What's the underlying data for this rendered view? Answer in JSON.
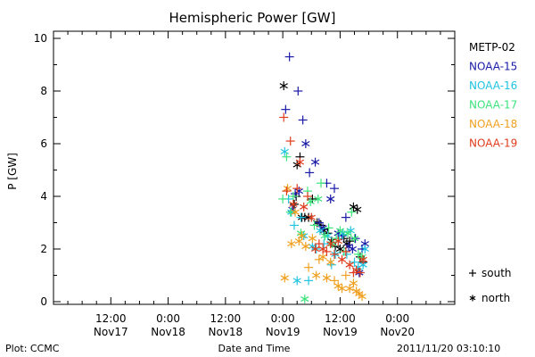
{
  "chart_data": {
    "type": "scatter",
    "title": "Hemispheric Power [GW]",
    "ylabel": "P [GW]",
    "xlabel": "Date and Time",
    "ylim": [
      0,
      10
    ],
    "yticks": [
      0,
      2,
      4,
      6,
      8,
      10
    ],
    "x_unit": "hours since 2011-11-16 12:00 UT",
    "xlim": [
      0,
      84
    ],
    "xticks": [
      {
        "x": 12,
        "time": "12:00",
        "date": "Nov17"
      },
      {
        "x": 24,
        "time": "0:00",
        "date": "Nov18"
      },
      {
        "x": 36,
        "time": "12:00",
        "date": "Nov18"
      },
      {
        "x": 48,
        "time": "0:00",
        "date": "Nov19"
      },
      {
        "x": 60,
        "time": "12:00",
        "date": "Nov19"
      },
      {
        "x": 72,
        "time": "0:00",
        "date": "Nov20"
      }
    ],
    "legend": {
      "placement": "right",
      "symbol_legend": [
        {
          "symbol": "+",
          "label": "south"
        },
        {
          "symbol": "*",
          "label": "north"
        }
      ]
    },
    "series": [
      {
        "name": "METP-02",
        "color": "#000000",
        "points": [
          {
            "x": 48.2,
            "y": 8.2,
            "m": "*"
          },
          {
            "x": 50.4,
            "y": 3.7,
            "m": "+"
          },
          {
            "x": 50.8,
            "y": 4.0,
            "m": "+"
          },
          {
            "x": 51.0,
            "y": 5.2,
            "m": "*"
          },
          {
            "x": 51.6,
            "y": 5.5,
            "m": "+"
          },
          {
            "x": 52.0,
            "y": 3.2,
            "m": "*"
          },
          {
            "x": 52.6,
            "y": 3.2,
            "m": "+"
          },
          {
            "x": 53.4,
            "y": 3.2,
            "m": "*"
          },
          {
            "x": 54.2,
            "y": 3.9,
            "m": "+"
          },
          {
            "x": 55.2,
            "y": 3.0,
            "m": "*"
          },
          {
            "x": 56.0,
            "y": 2.9,
            "m": "+"
          },
          {
            "x": 56.6,
            "y": 2.7,
            "m": "*"
          },
          {
            "x": 57.4,
            "y": 2.6,
            "m": "+"
          },
          {
            "x": 58.2,
            "y": 2.3,
            "m": "*"
          },
          {
            "x": 59.0,
            "y": 2.1,
            "m": "+"
          },
          {
            "x": 60.0,
            "y": 2.0,
            "m": "*"
          },
          {
            "x": 60.8,
            "y": 2.4,
            "m": "+"
          },
          {
            "x": 61.4,
            "y": 2.2,
            "m": "*"
          },
          {
            "x": 62.0,
            "y": 2.3,
            "m": "+"
          },
          {
            "x": 62.8,
            "y": 3.6,
            "m": "*"
          },
          {
            "x": 63.6,
            "y": 3.5,
            "m": "*"
          },
          {
            "x": 64.2,
            "y": 1.7,
            "m": "+"
          },
          {
            "x": 64.8,
            "y": 1.5,
            "m": "+"
          }
        ]
      },
      {
        "name": "NOAA-15",
        "color": "#1a1aa8",
        "points": [
          {
            "x": 48.6,
            "y": 7.3,
            "m": "+"
          },
          {
            "x": 49.4,
            "y": 9.3,
            "m": "+"
          },
          {
            "x": 50.0,
            "y": 3.5,
            "m": "*"
          },
          {
            "x": 50.6,
            "y": 4.1,
            "m": "+"
          },
          {
            "x": 51.2,
            "y": 8.0,
            "m": "+"
          },
          {
            "x": 51.4,
            "y": 4.2,
            "m": "*"
          },
          {
            "x": 52.2,
            "y": 6.9,
            "m": "+"
          },
          {
            "x": 52.8,
            "y": 6.0,
            "m": "*"
          },
          {
            "x": 53.6,
            "y": 4.9,
            "m": "+"
          },
          {
            "x": 54.8,
            "y": 5.3,
            "m": "*"
          },
          {
            "x": 55.6,
            "y": 3.0,
            "m": "+"
          },
          {
            "x": 56.4,
            "y": 2.8,
            "m": "*"
          },
          {
            "x": 57.2,
            "y": 4.5,
            "m": "+"
          },
          {
            "x": 58.0,
            "y": 3.9,
            "m": "*"
          },
          {
            "x": 58.8,
            "y": 4.3,
            "m": "+"
          },
          {
            "x": 59.6,
            "y": 2.6,
            "m": "*"
          },
          {
            "x": 60.4,
            "y": 2.5,
            "m": "+"
          },
          {
            "x": 61.2,
            "y": 3.2,
            "m": "+"
          },
          {
            "x": 61.8,
            "y": 2.1,
            "m": "*"
          },
          {
            "x": 62.6,
            "y": 2.0,
            "m": "*"
          },
          {
            "x": 63.2,
            "y": 2.4,
            "m": "+"
          },
          {
            "x": 64.0,
            "y": 1.1,
            "m": "*"
          },
          {
            "x": 64.6,
            "y": 2.0,
            "m": "+"
          },
          {
            "x": 65.2,
            "y": 2.2,
            "m": "*"
          }
        ]
      },
      {
        "name": "NOAA-16",
        "color": "#20c4e0",
        "points": [
          {
            "x": 48.4,
            "y": 5.7,
            "m": "*"
          },
          {
            "x": 49.2,
            "y": 3.9,
            "m": "+"
          },
          {
            "x": 49.8,
            "y": 3.4,
            "m": "*"
          },
          {
            "x": 50.4,
            "y": 2.9,
            "m": "+"
          },
          {
            "x": 51.0,
            "y": 0.8,
            "m": "*"
          },
          {
            "x": 51.8,
            "y": 3.2,
            "m": "+"
          },
          {
            "x": 52.4,
            "y": 2.5,
            "m": "*"
          },
          {
            "x": 53.4,
            "y": 0.8,
            "m": "+"
          },
          {
            "x": 54.2,
            "y": 2.1,
            "m": "*"
          },
          {
            "x": 55.0,
            "y": 2.0,
            "m": "+"
          },
          {
            "x": 55.8,
            "y": 2.7,
            "m": "*"
          },
          {
            "x": 56.6,
            "y": 2.2,
            "m": "+"
          },
          {
            "x": 57.4,
            "y": 2.5,
            "m": "*"
          },
          {
            "x": 58.2,
            "y": 1.4,
            "m": "+"
          },
          {
            "x": 59.0,
            "y": 1.8,
            "m": "*"
          },
          {
            "x": 59.8,
            "y": 2.4,
            "m": "+"
          },
          {
            "x": 60.6,
            "y": 2.6,
            "m": "*"
          },
          {
            "x": 61.4,
            "y": 1.8,
            "m": "+"
          },
          {
            "x": 62.2,
            "y": 2.7,
            "m": "*"
          },
          {
            "x": 63.0,
            "y": 1.5,
            "m": "+"
          },
          {
            "x": 63.8,
            "y": 1.3,
            "m": "*"
          },
          {
            "x": 64.8,
            "y": 1.4,
            "m": "*"
          },
          {
            "x": 65.2,
            "y": 2.0,
            "m": "*"
          }
        ]
      },
      {
        "name": "NOAA-17",
        "color": "#3ce47c",
        "points": [
          {
            "x": 48.0,
            "y": 3.9,
            "m": "+"
          },
          {
            "x": 48.8,
            "y": 5.5,
            "m": "+"
          },
          {
            "x": 49.6,
            "y": 3.4,
            "m": "+"
          },
          {
            "x": 50.2,
            "y": 4.0,
            "m": "+"
          },
          {
            "x": 51.8,
            "y": 2.6,
            "m": "*"
          },
          {
            "x": 52.6,
            "y": 0.1,
            "m": "*"
          },
          {
            "x": 53.2,
            "y": 4.2,
            "m": "+"
          },
          {
            "x": 53.8,
            "y": 3.8,
            "m": "*"
          },
          {
            "x": 54.6,
            "y": 2.9,
            "m": "+"
          },
          {
            "x": 55.4,
            "y": 3.9,
            "m": "*"
          },
          {
            "x": 56.0,
            "y": 4.5,
            "m": "+"
          },
          {
            "x": 56.8,
            "y": 2.5,
            "m": "*"
          },
          {
            "x": 57.6,
            "y": 2.8,
            "m": "+"
          },
          {
            "x": 58.4,
            "y": 2.2,
            "m": "*"
          },
          {
            "x": 59.2,
            "y": 2.4,
            "m": "+"
          },
          {
            "x": 60.0,
            "y": 2.7,
            "m": "*"
          },
          {
            "x": 60.8,
            "y": 1.9,
            "m": "+"
          },
          {
            "x": 61.6,
            "y": 2.6,
            "m": "*"
          },
          {
            "x": 62.4,
            "y": 3.4,
            "m": "+"
          },
          {
            "x": 63.0,
            "y": 2.4,
            "m": "*"
          },
          {
            "x": 63.8,
            "y": 1.8,
            "m": "+"
          },
          {
            "x": 64.6,
            "y": 1.7,
            "m": "*"
          }
        ]
      },
      {
        "name": "NOAA-18",
        "color": "#f0a020",
        "points": [
          {
            "x": 48.4,
            "y": 0.9,
            "m": "*"
          },
          {
            "x": 49.0,
            "y": 4.3,
            "m": "*"
          },
          {
            "x": 49.8,
            "y": 2.2,
            "m": "*"
          },
          {
            "x": 50.6,
            "y": 3.4,
            "m": "*"
          },
          {
            "x": 51.4,
            "y": 2.3,
            "m": "*"
          },
          {
            "x": 52.0,
            "y": 2.5,
            "m": "*"
          },
          {
            "x": 52.8,
            "y": 2.1,
            "m": "*"
          },
          {
            "x": 53.4,
            "y": 1.3,
            "m": "+"
          },
          {
            "x": 54.2,
            "y": 2.4,
            "m": "*"
          },
          {
            "x": 55.0,
            "y": 1.0,
            "m": "*"
          },
          {
            "x": 55.6,
            "y": 1.6,
            "m": "+"
          },
          {
            "x": 56.4,
            "y": 1.7,
            "m": "*"
          },
          {
            "x": 57.2,
            "y": 0.9,
            "m": "*"
          },
          {
            "x": 58.0,
            "y": 1.5,
            "m": "*"
          },
          {
            "x": 58.8,
            "y": 0.8,
            "m": "+"
          },
          {
            "x": 59.6,
            "y": 0.6,
            "m": "*"
          },
          {
            "x": 60.4,
            "y": 0.5,
            "m": "*"
          },
          {
            "x": 61.2,
            "y": 1.0,
            "m": "+"
          },
          {
            "x": 62.0,
            "y": 0.5,
            "m": "*"
          },
          {
            "x": 62.8,
            "y": 0.7,
            "m": "*"
          },
          {
            "x": 63.4,
            "y": 0.4,
            "m": "*"
          },
          {
            "x": 64.0,
            "y": 0.3,
            "m": "*"
          },
          {
            "x": 64.6,
            "y": 0.2,
            "m": "*"
          }
        ]
      },
      {
        "name": "NOAA-19",
        "color": "#e03c1c",
        "points": [
          {
            "x": 48.2,
            "y": 7.0,
            "m": "+"
          },
          {
            "x": 48.8,
            "y": 4.2,
            "m": "+"
          },
          {
            "x": 49.6,
            "y": 6.1,
            "m": "+"
          },
          {
            "x": 50.2,
            "y": 3.7,
            "m": "*"
          },
          {
            "x": 51.0,
            "y": 4.3,
            "m": "+"
          },
          {
            "x": 51.6,
            "y": 5.3,
            "m": "*"
          },
          {
            "x": 52.4,
            "y": 3.6,
            "m": "*"
          },
          {
            "x": 53.2,
            "y": 4.0,
            "m": "+"
          },
          {
            "x": 54.0,
            "y": 3.2,
            "m": "*"
          },
          {
            "x": 54.8,
            "y": 2.0,
            "m": "*"
          },
          {
            "x": 55.6,
            "y": 2.2,
            "m": "+"
          },
          {
            "x": 56.4,
            "y": 2.0,
            "m": "*"
          },
          {
            "x": 57.2,
            "y": 1.9,
            "m": "+"
          },
          {
            "x": 58.0,
            "y": 2.2,
            "m": "*"
          },
          {
            "x": 58.8,
            "y": 1.8,
            "m": "+"
          },
          {
            "x": 59.6,
            "y": 2.3,
            "m": "*"
          },
          {
            "x": 60.4,
            "y": 1.6,
            "m": "*"
          },
          {
            "x": 61.2,
            "y": 1.9,
            "m": "+"
          },
          {
            "x": 62.0,
            "y": 1.4,
            "m": "*"
          },
          {
            "x": 62.8,
            "y": 1.1,
            "m": "+"
          },
          {
            "x": 63.4,
            "y": 1.2,
            "m": "*"
          },
          {
            "x": 64.2,
            "y": 1.1,
            "m": "+"
          },
          {
            "x": 64.8,
            "y": 1.6,
            "m": "*"
          }
        ]
      }
    ]
  },
  "footer": {
    "left": "Plot: CCMC",
    "center": "Date and Time",
    "right": "2011/11/20 03:10:10"
  }
}
